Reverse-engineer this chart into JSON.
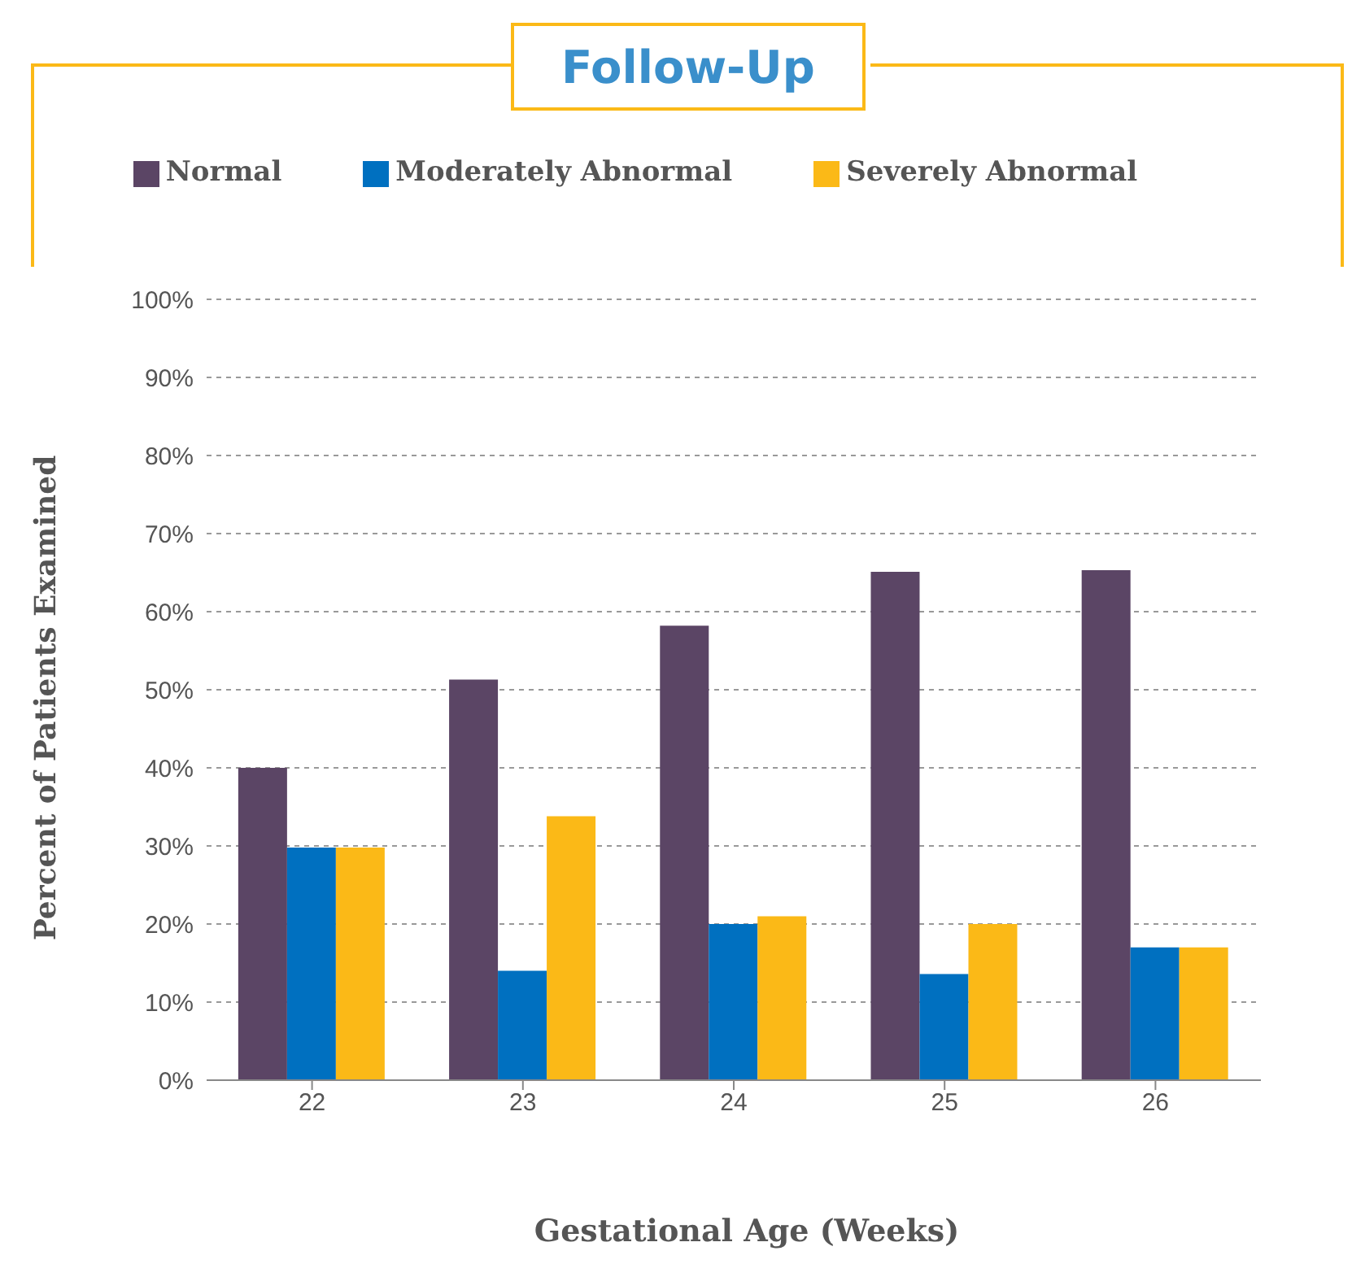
{
  "chart_data": {
    "type": "bar",
    "title": "Follow-Up",
    "xlabel": "Gestational Age (Weeks)",
    "ylabel": "Percent of Patients Examined",
    "categories": [
      "22",
      "23",
      "24",
      "25",
      "26"
    ],
    "series": [
      {
        "name": "Normal",
        "color": "#5b4565",
        "values": [
          40,
          51.3,
          58.2,
          65.1,
          65.3
        ]
      },
      {
        "name": "Moderately Abnormal",
        "color": "#0070c0",
        "values": [
          29.8,
          14,
          20,
          13.6,
          17
        ]
      },
      {
        "name": "Severely Abnormal",
        "color": "#fbb917",
        "values": [
          29.8,
          33.8,
          21,
          20,
          17
        ]
      }
    ],
    "ylim": [
      0,
      100
    ],
    "yticks": [
      {
        "value": 0,
        "label": "0%"
      },
      {
        "value": 10,
        "label": "10%"
      },
      {
        "value": 20,
        "label": "20%"
      },
      {
        "value": 30,
        "label": "30%"
      },
      {
        "value": 40,
        "label": "40%"
      },
      {
        "value": 50,
        "label": "50%"
      },
      {
        "value": 60,
        "label": "60%"
      },
      {
        "value": 70,
        "label": "70%"
      },
      {
        "value": 80,
        "label": "80%"
      },
      {
        "value": 90,
        "label": "90%"
      },
      {
        "value": 100,
        "label": "100%"
      }
    ],
    "grid": "y",
    "legend": "top"
  }
}
